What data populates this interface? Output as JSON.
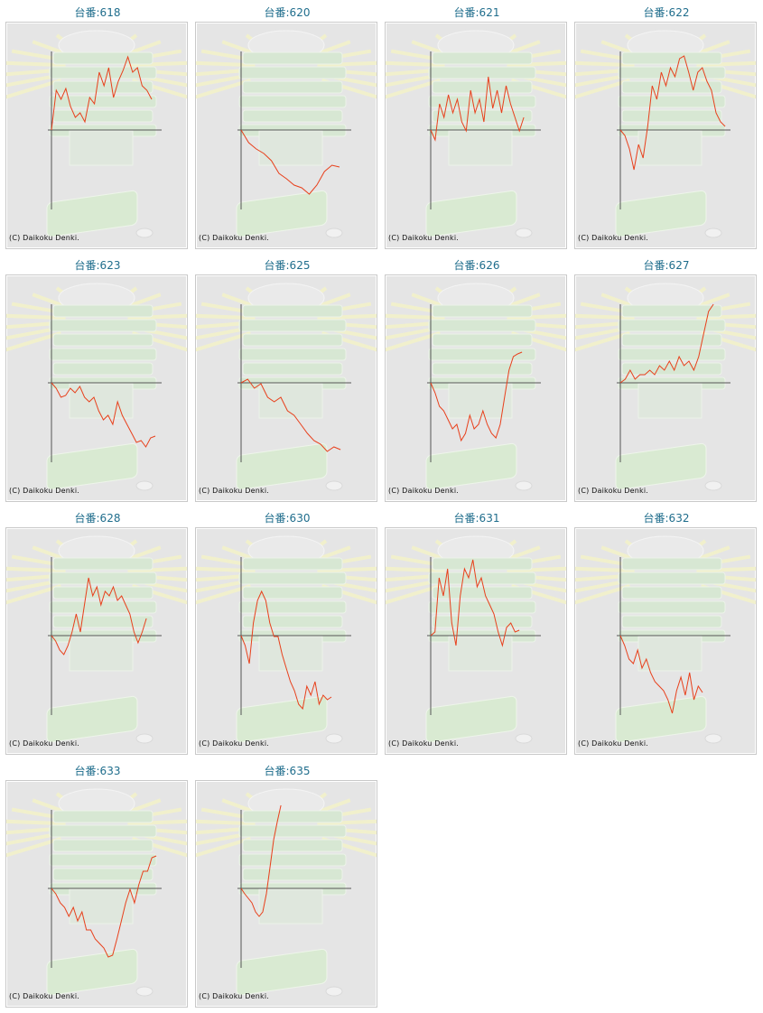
{
  "page": {
    "title_prefix": "台番:",
    "copyright": "(C) Daikoku Denki."
  },
  "colors": {
    "line": "#e8401c",
    "title": "#1f6d8c",
    "axis": "#555555",
    "background": "#e5e5e5"
  },
  "chart_data": {
    "type": "line",
    "ylim": [
      -2200,
      2200
    ],
    "xlim": [
      0,
      8000
    ],
    "charts": [
      {
        "title": "台番:618",
        "end_x": 7280,
        "values": [
          0,
          1100,
          850,
          1150,
          650,
          350,
          475,
          225,
          900,
          725,
          1600,
          1225,
          1725,
          900,
          1350,
          1650,
          2025,
          1600,
          1725,
          1225,
          1100,
          850
        ]
      },
      {
        "title": "台番:620",
        "end_x": 7150,
        "values": [
          0,
          -350,
          -525,
          -650,
          -850,
          -1200,
          -1350,
          -1525,
          -1600,
          -1775,
          -1525,
          -1150,
          -975,
          -1025
        ]
      },
      {
        "title": "台番:621",
        "end_x": 6760,
        "values": [
          0,
          -275,
          725,
          350,
          975,
          475,
          850,
          225,
          -25,
          1100,
          475,
          850,
          225,
          1475,
          600,
          1100,
          475,
          1225,
          725,
          350,
          -25,
          350
        ]
      },
      {
        "title": "台番:622",
        "end_x": 7610,
        "values": [
          0,
          -150,
          -525,
          -1100,
          -400,
          -775,
          100,
          1225,
          850,
          1600,
          1225,
          1725,
          1475,
          1975,
          2050,
          1600,
          1100,
          1600,
          1725,
          1350,
          1100,
          475,
          225,
          100
        ]
      },
      {
        "title": "台番:623",
        "end_x": 7540,
        "values": [
          0,
          -150,
          -400,
          -350,
          -150,
          -275,
          -100,
          -400,
          -525,
          -400,
          -775,
          -1025,
          -900,
          -1150,
          -525,
          -900,
          -1150,
          -1400,
          -1650,
          -1600,
          -1775,
          -1525,
          -1475
        ]
      },
      {
        "title": "台番:625",
        "end_x": 7220,
        "values": [
          0,
          100,
          -150,
          -25,
          -400,
          -525,
          -400,
          -775,
          -900,
          -1150,
          -1400,
          -1600,
          -1700,
          -1900,
          -1775,
          -1850
        ]
      },
      {
        "title": "台番:626",
        "end_x": 6630,
        "values": [
          0,
          -275,
          -650,
          -775,
          -1025,
          -1275,
          -1150,
          -1600,
          -1400,
          -900,
          -1275,
          -1150,
          -775,
          -1150,
          -1400,
          -1525,
          -1150,
          -400,
          350,
          725,
          800,
          850
        ]
      },
      {
        "title": "台番:627",
        "end_x": 6760,
        "values": [
          0,
          100,
          350,
          100,
          225,
          225,
          350,
          225,
          475,
          350,
          600,
          350,
          725,
          475,
          600,
          350,
          725,
          1350,
          1975,
          2175
        ]
      },
      {
        "title": "台番:628",
        "end_x": 6890,
        "values": [
          0,
          -150,
          -400,
          -525,
          -275,
          100,
          600,
          100,
          850,
          1600,
          1100,
          1350,
          850,
          1225,
          1100,
          1350,
          975,
          1100,
          850,
          600,
          100,
          -200,
          100,
          475
        ]
      },
      {
        "title": "台番:630",
        "end_x": 6560,
        "values": [
          0,
          -275,
          -775,
          350,
          975,
          1225,
          975,
          350,
          -25,
          -25,
          -525,
          -900,
          -1275,
          -1525,
          -1900,
          -2025,
          -1400,
          -1650,
          -1275,
          -1900,
          -1650,
          -1775,
          -1700
        ]
      },
      {
        "title": "台番:631",
        "end_x": 6430,
        "values": [
          0,
          100,
          1600,
          1100,
          1850,
          350,
          -275,
          1100,
          1850,
          1600,
          2100,
          1350,
          1600,
          1100,
          850,
          600,
          100,
          -275,
          225,
          350,
          100,
          150
        ]
      },
      {
        "title": "台番:632",
        "end_x": 5970,
        "values": [
          0,
          -275,
          -650,
          -775,
          -400,
          -900,
          -650,
          -1025,
          -1275,
          -1400,
          -1525,
          -1775,
          -2150,
          -1525,
          -1150,
          -1650,
          -1025,
          -1775,
          -1400,
          -1575
        ]
      },
      {
        "title": "台番:633",
        "end_x": 7610,
        "values": [
          0,
          -150,
          -400,
          -525,
          -775,
          -525,
          -900,
          -650,
          -1150,
          -1150,
          -1400,
          -1525,
          -1650,
          -1900,
          -1850,
          -1400,
          -900,
          -400,
          -25,
          -400,
          100,
          475,
          475,
          850,
          900
        ]
      },
      {
        "title": "台番:635",
        "end_x": 2890,
        "values": [
          0,
          -150,
          -275,
          -400,
          -650,
          -775,
          -650,
          -150,
          600,
          1350,
          1850,
          2300
        ]
      }
    ]
  }
}
